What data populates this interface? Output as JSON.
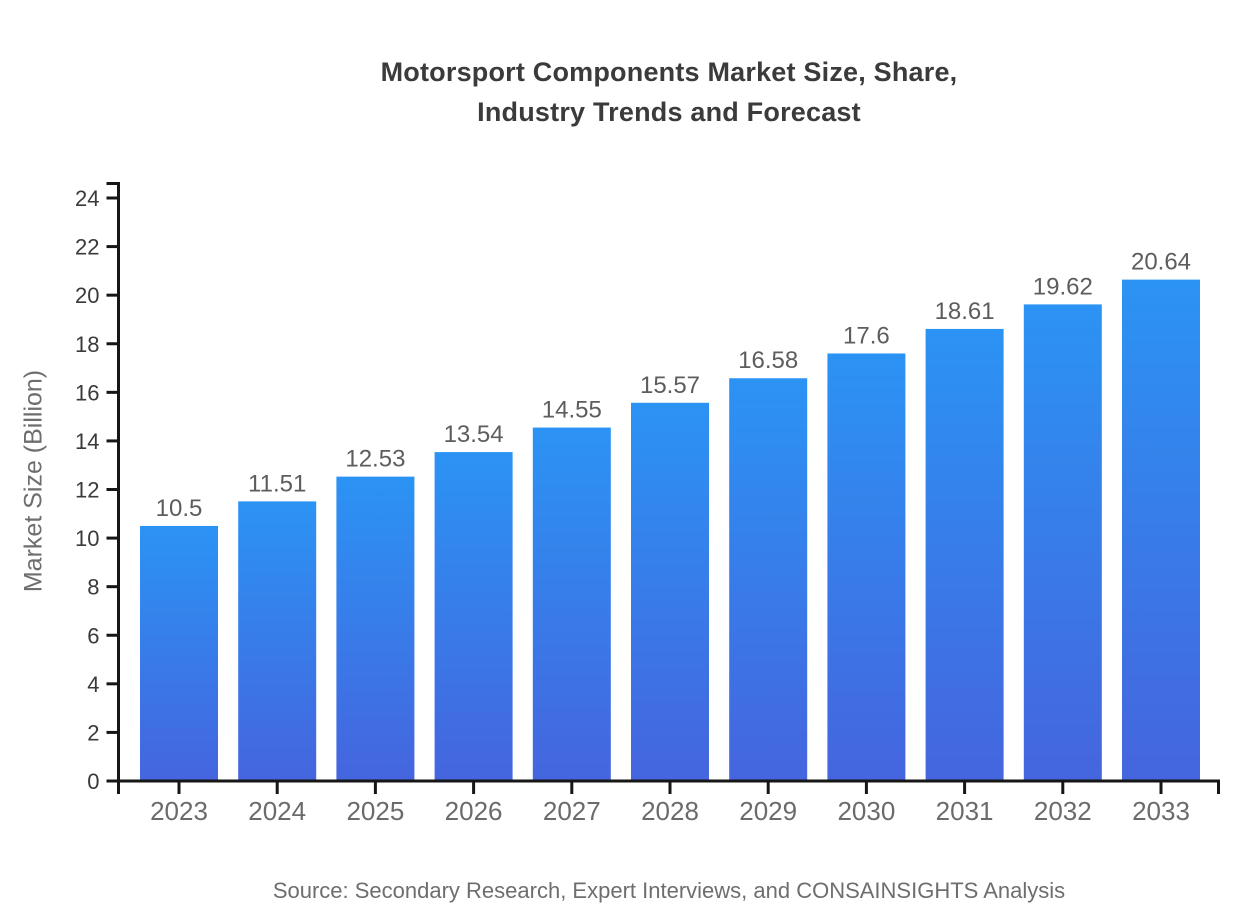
{
  "chart_data": {
    "type": "bar",
    "title_lines": [
      "Motorsport Components Market Size, Share,",
      "Industry Trends and Forecast"
    ],
    "title": "Motorsport Components Market Size, Share, Industry Trends and Forecast",
    "xlabel": "",
    "ylabel": "Market Size (Billion)",
    "categories": [
      "2023",
      "2024",
      "2025",
      "2026",
      "2027",
      "2028",
      "2029",
      "2030",
      "2031",
      "2032",
      "2033"
    ],
    "values": [
      10.5,
      11.51,
      12.53,
      13.54,
      14.55,
      15.57,
      16.58,
      17.6,
      18.61,
      19.62,
      20.64
    ],
    "value_labels": [
      "10.5",
      "11.51",
      "12.53",
      "13.54",
      "14.55",
      "15.57",
      "16.58",
      "17.6",
      "18.61",
      "19.62",
      "20.64"
    ],
    "ylim": [
      0,
      24
    ],
    "y_ticks": [
      0,
      2,
      4,
      6,
      8,
      10,
      12,
      14,
      16,
      18,
      20,
      22,
      24
    ],
    "grid": false,
    "legend": null,
    "source_note": "Source: Secondary Research, Expert Interviews, and CONSAINSIGHTS Analysis",
    "colors": {
      "bar_gradient_top": "#2B93F4",
      "bar_gradient_bottom": "#4565DE",
      "axis": "#161616",
      "title": "#3b3b3b",
      "y_tick_label": "#3a3a3a",
      "category_label": "#6b6b6b",
      "value_label": "#5d5d5d",
      "muted_text": "#6e6e6e",
      "background": "#ffffff"
    }
  }
}
